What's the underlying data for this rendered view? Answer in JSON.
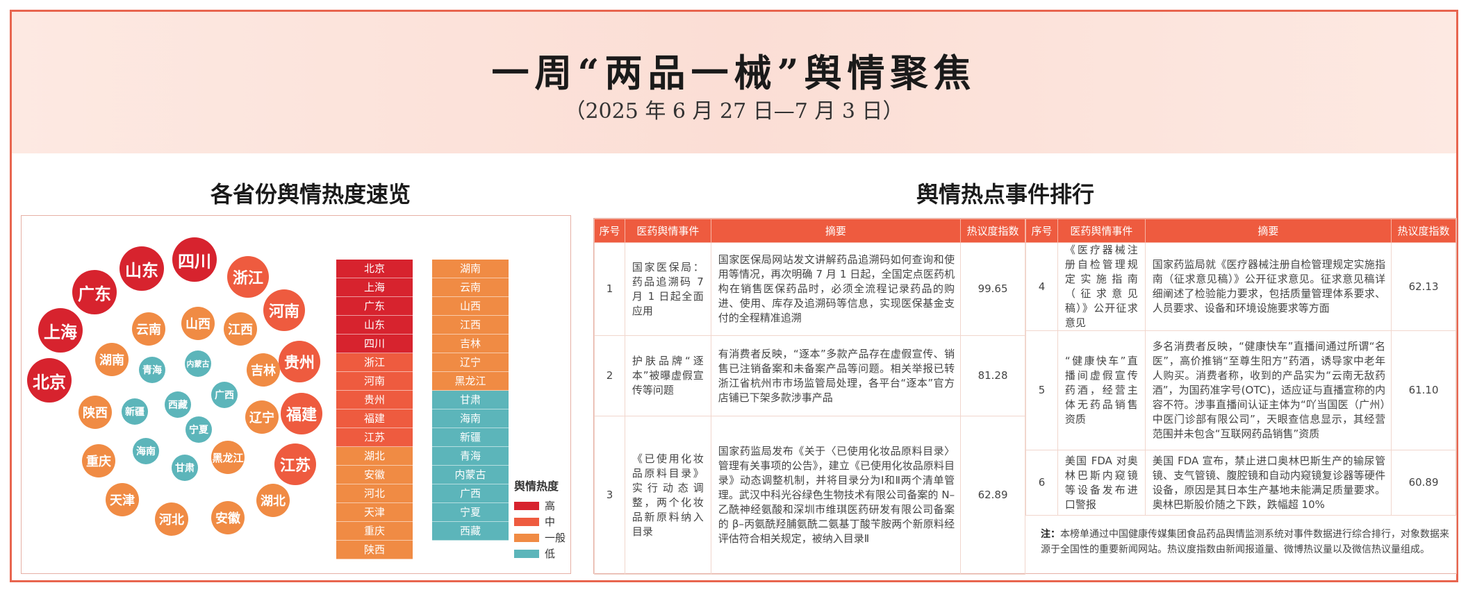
{
  "header": {
    "title": "一周“两品一械”舆情聚焦",
    "subtitle": "（2025 年 6 月 27 日—7 月 3 日）"
  },
  "left": {
    "title": "各省份舆情热度速览",
    "bubbles": [
      {
        "name": "北京",
        "level": "high"
      },
      {
        "name": "上海",
        "level": "high"
      },
      {
        "name": "广东",
        "level": "high"
      },
      {
        "name": "山东",
        "level": "high"
      },
      {
        "name": "四川",
        "level": "high"
      },
      {
        "name": "浙江",
        "level": "mid"
      },
      {
        "name": "河南",
        "level": "mid"
      },
      {
        "name": "贵州",
        "level": "mid"
      },
      {
        "name": "福建",
        "level": "mid"
      },
      {
        "name": "江苏",
        "level": "mid"
      },
      {
        "name": "湖北",
        "level": "general"
      },
      {
        "name": "安徽",
        "level": "general"
      },
      {
        "name": "河北",
        "level": "general"
      },
      {
        "name": "天津",
        "level": "general"
      },
      {
        "name": "重庆",
        "level": "general"
      },
      {
        "name": "陕西",
        "level": "general"
      },
      {
        "name": "湖南",
        "level": "general"
      },
      {
        "name": "云南",
        "level": "general"
      },
      {
        "name": "山西",
        "level": "general"
      },
      {
        "name": "江西",
        "level": "general"
      },
      {
        "name": "吉林",
        "level": "general"
      },
      {
        "name": "辽宁",
        "level": "general"
      },
      {
        "name": "黑龙江",
        "level": "general"
      },
      {
        "name": "青海",
        "level": "low"
      },
      {
        "name": "内蒙古",
        "level": "low"
      },
      {
        "name": "广西",
        "level": "low"
      },
      {
        "name": "宁夏",
        "level": "low"
      },
      {
        "name": "甘肃",
        "level": "low"
      },
      {
        "name": "海南",
        "level": "low"
      },
      {
        "name": "新疆",
        "level": "low"
      },
      {
        "name": "西藏",
        "level": "low"
      }
    ],
    "ranking_col1": [
      {
        "name": "北京",
        "level": "high"
      },
      {
        "name": "上海",
        "level": "high"
      },
      {
        "name": "广东",
        "level": "high"
      },
      {
        "name": "山东",
        "level": "high"
      },
      {
        "name": "四川",
        "level": "high"
      },
      {
        "name": "浙江",
        "level": "mid"
      },
      {
        "name": "河南",
        "level": "mid"
      },
      {
        "name": "贵州",
        "level": "mid"
      },
      {
        "name": "福建",
        "level": "mid"
      },
      {
        "name": "江苏",
        "level": "mid"
      },
      {
        "name": "湖北",
        "level": "general"
      },
      {
        "name": "安徽",
        "level": "general"
      },
      {
        "name": "河北",
        "level": "general"
      },
      {
        "name": "天津",
        "level": "general"
      },
      {
        "name": "重庆",
        "level": "general"
      },
      {
        "name": "陕西",
        "level": "general"
      }
    ],
    "ranking_col2": [
      {
        "name": "湖南",
        "level": "general"
      },
      {
        "name": "云南",
        "level": "general"
      },
      {
        "name": "山西",
        "level": "general"
      },
      {
        "name": "江西",
        "level": "general"
      },
      {
        "name": "吉林",
        "level": "general"
      },
      {
        "name": "辽宁",
        "level": "general"
      },
      {
        "name": "黑龙江",
        "level": "general"
      },
      {
        "name": "甘肃",
        "level": "low"
      },
      {
        "name": "海南",
        "level": "low"
      },
      {
        "name": "新疆",
        "level": "low"
      },
      {
        "name": "青海",
        "level": "low"
      },
      {
        "name": "内蒙古",
        "level": "low"
      },
      {
        "name": "广西",
        "level": "low"
      },
      {
        "name": "宁夏",
        "level": "low"
      },
      {
        "name": "西藏",
        "level": "low"
      }
    ],
    "legend": {
      "title": "舆情热度",
      "items": [
        {
          "label": "高",
          "level": "high"
        },
        {
          "label": "中",
          "level": "mid"
        },
        {
          "label": "一般",
          "level": "general"
        },
        {
          "label": "低",
          "level": "low"
        }
      ]
    },
    "colors": {
      "high": "#d7232e",
      "mid": "#ee5b3f",
      "general": "#f08b44",
      "low": "#5cb5ba"
    }
  },
  "right": {
    "title": "舆情热点事件排行",
    "headers": [
      "序号",
      "医药舆情事件",
      "摘要",
      "热议度指数"
    ],
    "events_left": [
      {
        "no": "1",
        "event": "国家医保局：药品追溯码 7 月 1 日起全面应用",
        "summary": "国家医保局网站发文讲解药品追溯码如何查询和使用等情况，再次明确 7 月 1 日起，全国定点医药机构在销售医保药品时，必须全流程记录药品的购进、使用、库存及追溯码等信息，实现医保基金支付的全程精准追溯",
        "index": "99.65"
      },
      {
        "no": "2",
        "event": "护肤品牌“逐本”被曝虚假宣传等问题",
        "summary": "有消费者反映，“逐本”多款产品存在虚假宣传、销售已注销备案和未备案产品等问题。相关举报已转浙江省杭州市市场监管局处理，各平台“逐本”官方店铺已下架多款涉事产品",
        "index": "81.28"
      },
      {
        "no": "3",
        "event": "《已使用化妆品原料目录》实行动态调整，两个化妆品新原料纳入目录",
        "summary": "国家药监局发布《关于〈已使用化妆品原料目录〉管理有关事项的公告》，建立《已使用化妆品原料目录》动态调整机制，并将目录分为Ⅰ和Ⅱ两个清单管理。武汉中科光谷绿色生物技术有限公司备案的 N– 乙酰神经氨酸和深圳市维琪医药研发有限公司备案的 β–丙氨酰羟脯氨酰二氨基丁酸苄胺两个新原料经评估符合相关规定，被纳入目录Ⅱ",
        "index": "62.89"
      }
    ],
    "events_right": [
      {
        "no": "4",
        "event": "《医疗器械注册自检管理规定实施指南（征求意见稿）》公开征求意见",
        "summary": "国家药监局就《医疗器械注册自检管理规定实施指南（征求意见稿）》公开征求意见。征求意见稿详细阐述了检验能力要求，包括质量管理体系要求、人员要求、设备和环境设施要求等方面",
        "index": "62.13"
      },
      {
        "no": "5",
        "event": "“健康快车”直播间虚假宣传药酒，经营主体无药品销售资质",
        "summary": "多名消费者反映，“健康快车”直播间通过所谓“名医”，高价推销“至尊生阳方”药酒，诱导家中老年人购买。消费者称，收到的产品实为“云南无敌药酒”，为国药准字号(OTC)，适应证与直播宣称的内容不符。涉事直播间认证主体为“吖当国医（广州）中医门诊部有限公司”，天眼查信息显示，其经营范围并未包含“互联网药品销售”资质",
        "index": "61.10"
      },
      {
        "no": "6",
        "event": "美国 FDA 对奥林巴斯内窥镜等设备发布进口警报",
        "summary": "美国 FDA 宣布，禁止进口奥林巴斯生产的输尿管镜、支气管镜、腹腔镜和自动内窥镜复诊器等硬件设备，原因是其日本生产基地未能满足质量要求。奥林巴斯股价随之下跌，跌幅超 10%",
        "index": "60.89"
      }
    ],
    "note_label": "注：",
    "note": "本榜单通过中国健康传媒集团食品药品舆情监测系统对事件数据进行综合排行，对象数据来源于全国性的重要新闻网站。热议度指数由新闻报道量、微博热议量以及微信热议量组成。"
  }
}
